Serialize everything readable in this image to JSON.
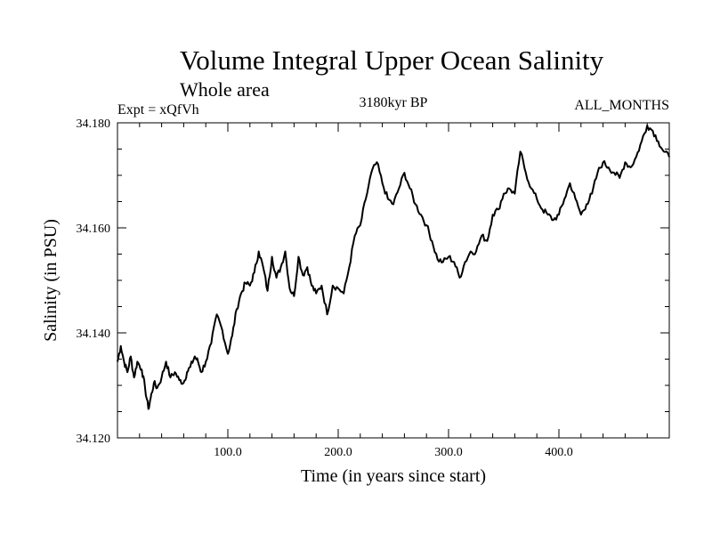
{
  "chart_data": {
    "type": "line",
    "title": "Volume Integral Upper Ocean Salinity",
    "subtitle": "Whole area",
    "experiment": "Expt = xQfVh",
    "period": "3180kyr BP",
    "months": "ALL_MONTHS",
    "xlabel": "Time (in years since start)",
    "ylabel": "Salinity (in PSU)",
    "xlim": [
      0,
      500
    ],
    "ylim": [
      34.12,
      34.18
    ],
    "x_ticks": [
      100,
      200,
      300,
      400
    ],
    "x_tick_labels": [
      "100.0",
      "200.0",
      "300.0",
      "400.0"
    ],
    "y_ticks": [
      34.12,
      34.14,
      34.16,
      34.18
    ],
    "y_tick_labels": [
      "34.120",
      "34.140",
      "34.160",
      "34.180"
    ],
    "x_minor_step": 20,
    "y_minor_step": 0.005,
    "series": [
      {
        "name": "Salinity",
        "color": "#000000",
        "x": [
          0,
          3,
          6,
          9,
          12,
          15,
          18,
          22,
          25,
          28,
          30,
          33,
          36,
          40,
          44,
          48,
          52,
          56,
          60,
          63,
          66,
          70,
          73,
          76,
          80,
          85,
          90,
          95,
          100,
          104,
          108,
          112,
          116,
          120,
          124,
          128,
          132,
          136,
          140,
          144,
          148,
          152,
          156,
          160,
          164,
          168,
          172,
          176,
          180,
          185,
          190,
          195,
          200,
          205,
          210,
          215,
          220,
          225,
          230,
          235,
          240,
          245,
          250,
          255,
          260,
          265,
          270,
          275,
          280,
          285,
          290,
          295,
          300,
          305,
          310,
          315,
          320,
          325,
          330,
          335,
          340,
          345,
          350,
          355,
          360,
          365,
          370,
          375,
          380,
          385,
          390,
          395,
          400,
          405,
          410,
          415,
          420,
          425,
          430,
          435,
          440,
          445,
          450,
          455,
          460,
          465,
          470,
          475,
          480,
          485,
          490,
          495,
          500
        ],
        "values": [
          34.1345,
          34.1375,
          34.1345,
          34.1325,
          34.1355,
          34.1315,
          34.1345,
          34.133,
          34.1295,
          34.1255,
          34.1275,
          34.1305,
          34.1295,
          34.1315,
          34.1345,
          34.1315,
          34.1325,
          34.131,
          34.1305,
          34.1325,
          34.1335,
          34.1355,
          34.1345,
          34.1325,
          34.1345,
          34.138,
          34.1435,
          34.1405,
          34.136,
          34.1395,
          34.1445,
          34.1475,
          34.1495,
          34.149,
          34.1515,
          34.1555,
          34.1525,
          34.148,
          34.1545,
          34.1505,
          34.1525,
          34.1555,
          34.1485,
          34.147,
          34.1545,
          34.151,
          34.1525,
          34.149,
          34.1475,
          34.149,
          34.1435,
          34.149,
          34.1485,
          34.1475,
          34.1525,
          34.1585,
          34.1605,
          34.1655,
          34.1705,
          34.1725,
          34.1685,
          34.1655,
          34.1645,
          34.1675,
          34.1705,
          34.1675,
          34.1645,
          34.1625,
          34.1605,
          34.1575,
          34.154,
          34.1535,
          34.1545,
          34.1535,
          34.1505,
          34.1535,
          34.1555,
          34.1555,
          34.1585,
          34.1575,
          34.1625,
          34.1635,
          34.1665,
          34.1675,
          34.1665,
          34.1745,
          34.1705,
          34.1675,
          34.1655,
          34.1635,
          34.1625,
          34.1615,
          34.1625,
          34.1655,
          34.1685,
          34.1655,
          34.1625,
          34.1645,
          34.1665,
          34.1705,
          34.1725,
          34.1715,
          34.1705,
          34.1695,
          34.1725,
          34.1715,
          34.1735,
          34.1765,
          34.1795,
          34.1785,
          34.1765,
          34.1745,
          34.1735
        ]
      }
    ]
  }
}
